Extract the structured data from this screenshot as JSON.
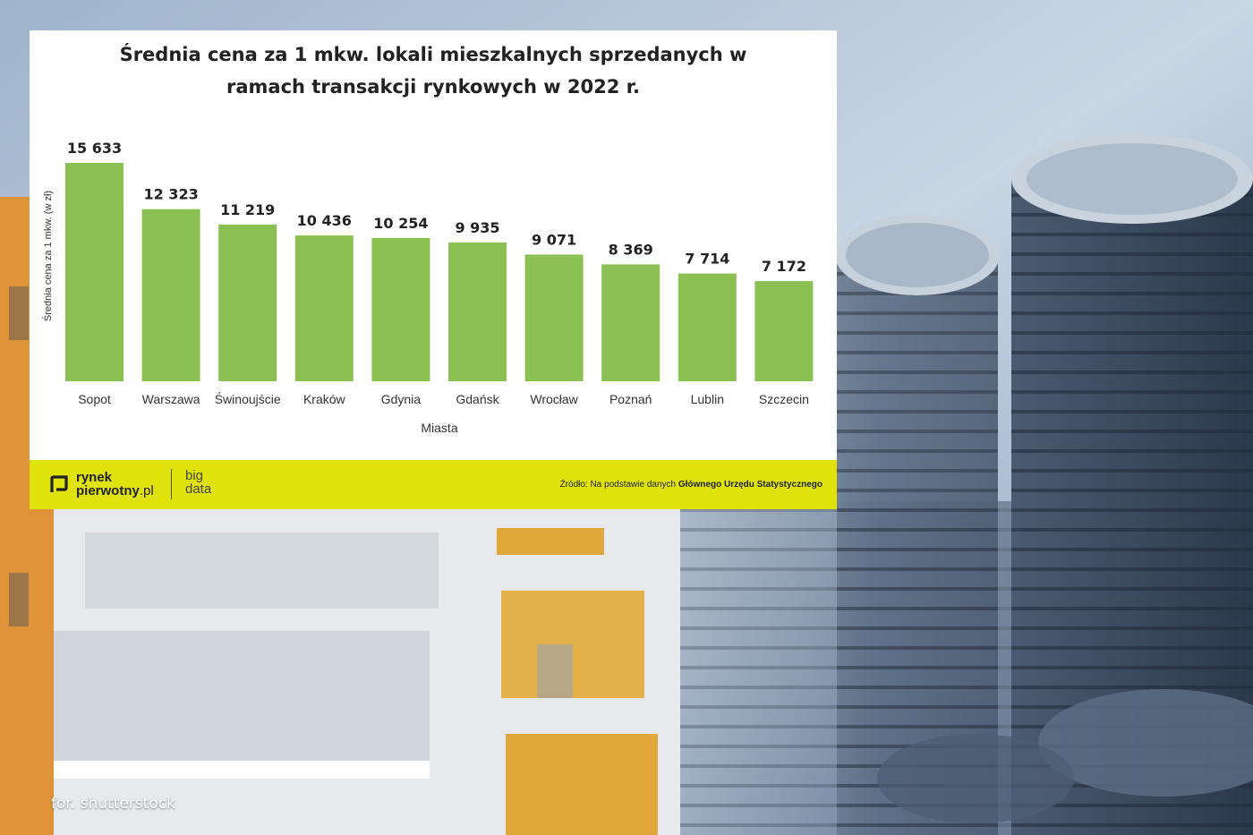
{
  "chart_data": {
    "type": "bar",
    "title_lines": [
      "Średnia cena za 1 mkw. lokali mieszkalnych sprzedanych w",
      "ramach transakcji rynkowych w 2022 r."
    ],
    "xlabel": "Miasta",
    "ylabel": "Średnia cena za 1 mkw. (w zł)",
    "categories": [
      "Sopot",
      "Warszawa",
      "Świnoujście",
      "Kraków",
      "Gdynia",
      "Gdańsk",
      "Wrocław",
      "Poznań",
      "Lublin",
      "Szczecin"
    ],
    "values": [
      15633,
      12323,
      11219,
      10436,
      10254,
      9935,
      9071,
      8369,
      7714,
      7172
    ],
    "value_labels": [
      "15 633",
      "12 323",
      "11 219",
      "10 436",
      "10 254",
      "9 935",
      "9 071",
      "8 369",
      "7 714",
      "7 172"
    ],
    "ylim": [
      0,
      15633
    ],
    "grid": false,
    "bar_color": "#8bc152"
  },
  "footer": {
    "logo_line1": "rynek",
    "logo_line2_bold": "pierwotny",
    "logo_line2_suffix": ".pl",
    "sub_brand_line1": "big",
    "sub_brand_line2": "data",
    "source_prefix": "Źródło: Na podstawie danych ",
    "source_bold": "Głównego Urzędu Statystycznego",
    "band_color": "#dfe20b"
  },
  "photo_credit": "for. shutterstock"
}
